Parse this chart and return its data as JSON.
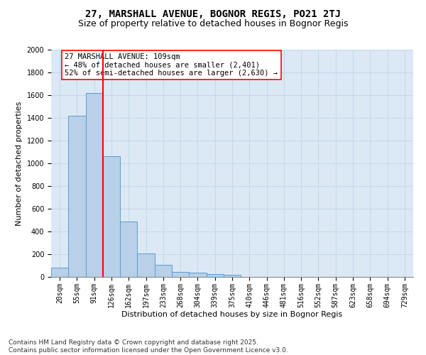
{
  "title_line1": "27, MARSHALL AVENUE, BOGNOR REGIS, PO21 2TJ",
  "title_line2": "Size of property relative to detached houses in Bognor Regis",
  "xlabel": "Distribution of detached houses by size in Bognor Regis",
  "ylabel": "Number of detached properties",
  "categories": [
    "20sqm",
    "55sqm",
    "91sqm",
    "126sqm",
    "162sqm",
    "197sqm",
    "233sqm",
    "268sqm",
    "304sqm",
    "339sqm",
    "375sqm",
    "410sqm",
    "446sqm",
    "481sqm",
    "516sqm",
    "552sqm",
    "587sqm",
    "623sqm",
    "658sqm",
    "694sqm",
    "729sqm"
  ],
  "values": [
    80,
    1420,
    1620,
    1060,
    490,
    205,
    105,
    45,
    35,
    25,
    20,
    0,
    0,
    0,
    0,
    0,
    0,
    0,
    0,
    0,
    0
  ],
  "bar_color": "#b8d0e8",
  "bar_edge_color": "#5b9bd5",
  "vline_x": 2.5,
  "vline_color": "red",
  "annotation_text": "27 MARSHALL AVENUE: 109sqm\n← 48% of detached houses are smaller (2,401)\n52% of semi-detached houses are larger (2,630) →",
  "annotation_box_color": "white",
  "annotation_box_edge_color": "red",
  "ylim": [
    0,
    2000
  ],
  "yticks": [
    0,
    200,
    400,
    600,
    800,
    1000,
    1200,
    1400,
    1600,
    1800,
    2000
  ],
  "grid_color": "#c8d8ea",
  "background_color": "#dce9f5",
  "footer_line1": "Contains HM Land Registry data © Crown copyright and database right 2025.",
  "footer_line2": "Contains public sector information licensed under the Open Government Licence v3.0.",
  "title_fontsize": 10,
  "subtitle_fontsize": 9,
  "label_fontsize": 8,
  "tick_fontsize": 7,
  "annotation_fontsize": 7.5,
  "footer_fontsize": 6.5
}
